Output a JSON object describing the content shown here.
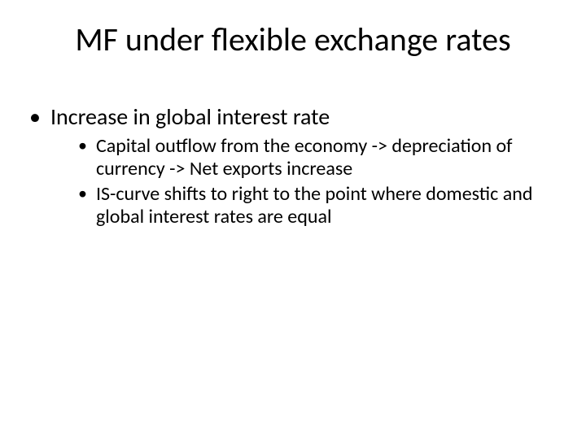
{
  "slide": {
    "background_color": "#ffffff",
    "text_color": "#000000",
    "font_family": "Calibri",
    "title": {
      "text": "MF under flexible exchange rates",
      "font_size_pt": 40,
      "font_weight": 400,
      "align": "center"
    },
    "bullets": {
      "level1_font_size_pt": 28,
      "level2_font_size_pt": 24,
      "items": [
        {
          "text": "Increase in global interest rate",
          "children": [
            {
              "text": "Capital outflow from the economy -> depreciation of currency -> Net exports increase"
            },
            {
              "text": "IS-curve shifts to right to the point where domestic and global interest rates are equal"
            }
          ]
        }
      ]
    }
  }
}
